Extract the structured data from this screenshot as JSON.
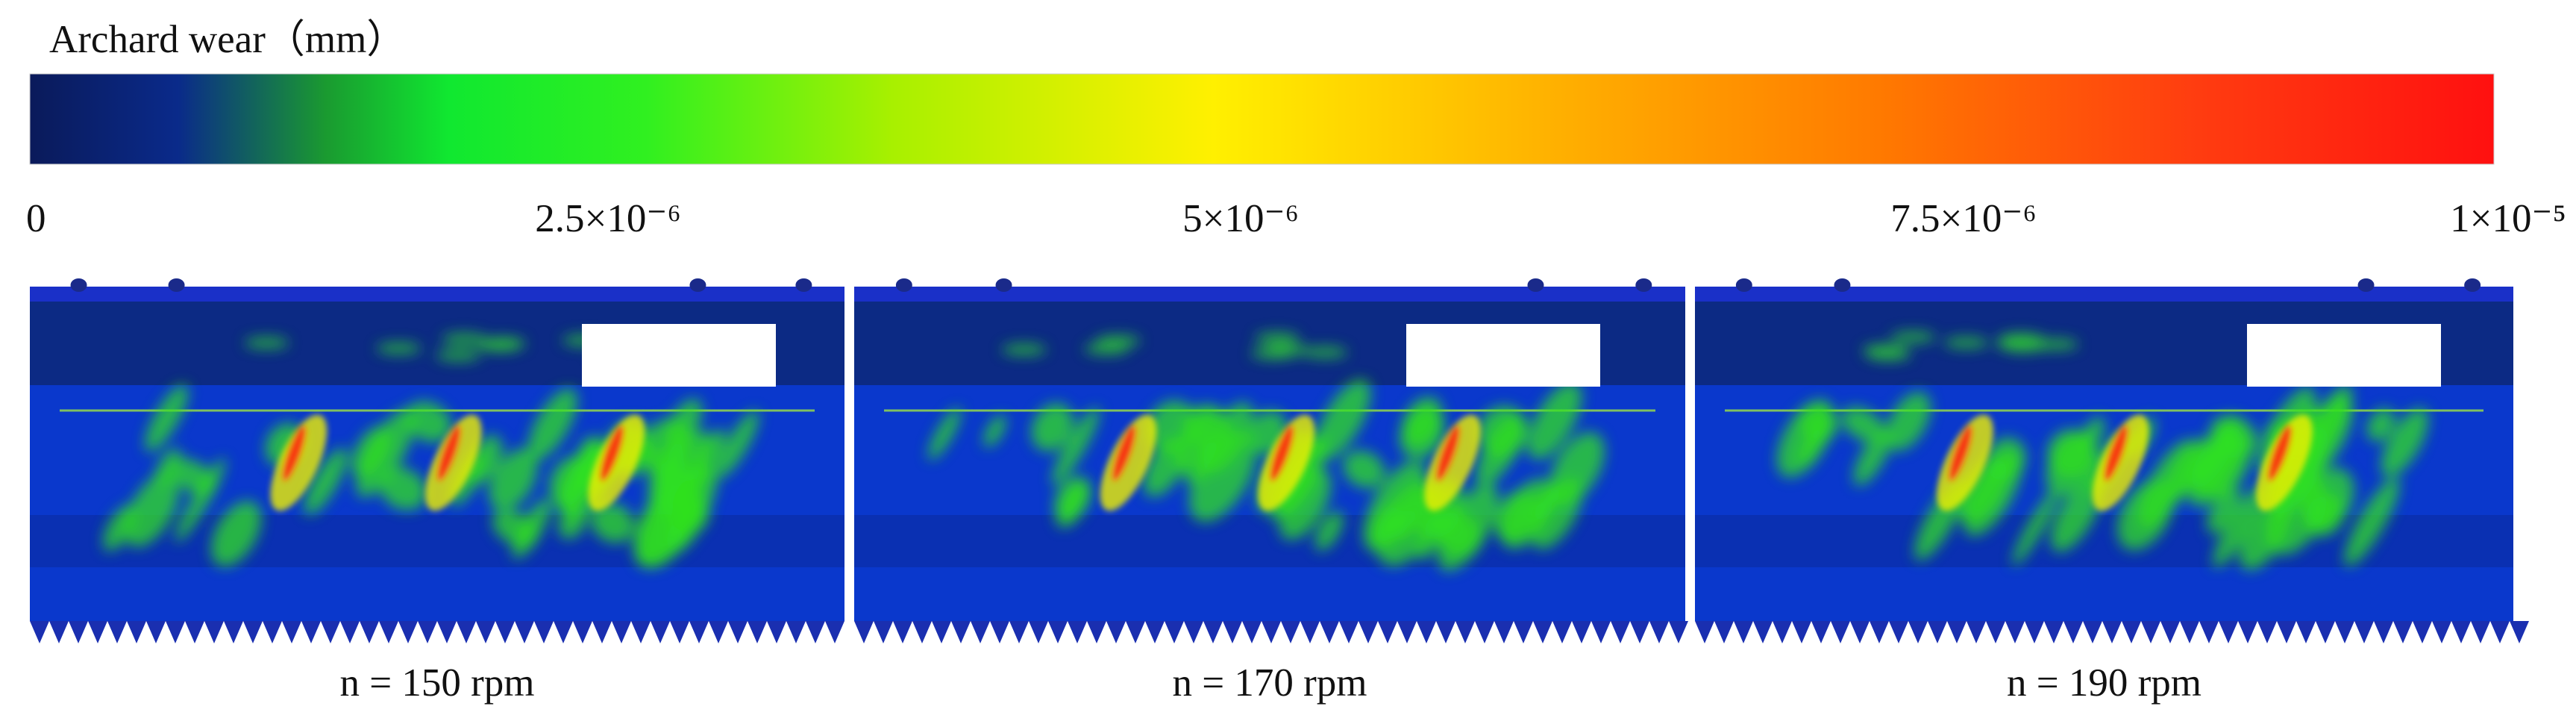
{
  "colorbar": {
    "title": "Archard wear（mm）",
    "ticks": [
      "0",
      "2.5×10⁻⁶",
      "5×10⁻⁶",
      "7.5×10⁻⁶",
      "1×10⁻⁵"
    ]
  },
  "panels": [
    {
      "label": "n = 150 rpm"
    },
    {
      "label": "n = 170 rpm"
    },
    {
      "label": "n = 190 rpm"
    }
  ]
}
